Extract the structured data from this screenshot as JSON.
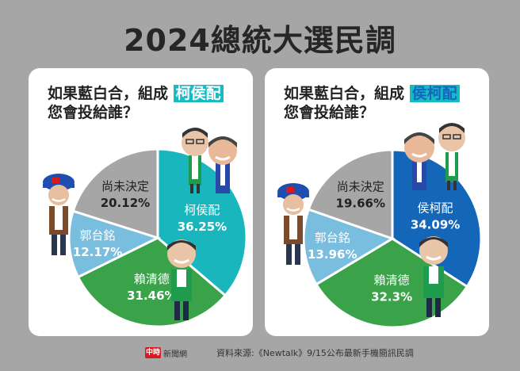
{
  "title": "2024總統大選民調",
  "footer": {
    "logo": "中時",
    "brand": "新聞網",
    "source": "資料來源:《Newtalk》9/15公布最新手機簡訊民調"
  },
  "chart_data": [
    {
      "type": "pie",
      "question_line1": "如果藍白合，組成",
      "highlight": "柯侯配",
      "question_line2": "您會投給誰？",
      "slices": [
        {
          "name": "柯侯配",
          "value": 36.25,
          "label": "36.25%",
          "color": "#1ab6bd"
        },
        {
          "name": "賴清德",
          "value": 31.46,
          "label": "31.46%",
          "color": "#3aa34a"
        },
        {
          "name": "郭台銘",
          "value": 12.17,
          "label": "12.17%",
          "color": "#79bddf"
        },
        {
          "name": "尚未決定",
          "value": 20.12,
          "label": "20.12%",
          "color": "#a6a6a6"
        }
      ]
    },
    {
      "type": "pie",
      "question_line1": "如果藍白合，組成",
      "highlight": "侯柯配",
      "question_line2": "您會投給誰？",
      "slices": [
        {
          "name": "侯柯配",
          "value": 34.09,
          "label": "34.09%",
          "color": "#1466b9"
        },
        {
          "name": "賴清德",
          "value": 32.3,
          "label": "32.3%",
          "color": "#3aa34a"
        },
        {
          "name": "郭台銘",
          "value": 13.96,
          "label": "13.96%",
          "color": "#79bddf"
        },
        {
          "name": "尚未決定",
          "value": 19.66,
          "label": "19.66%",
          "color": "#a6a6a6"
        }
      ]
    }
  ]
}
